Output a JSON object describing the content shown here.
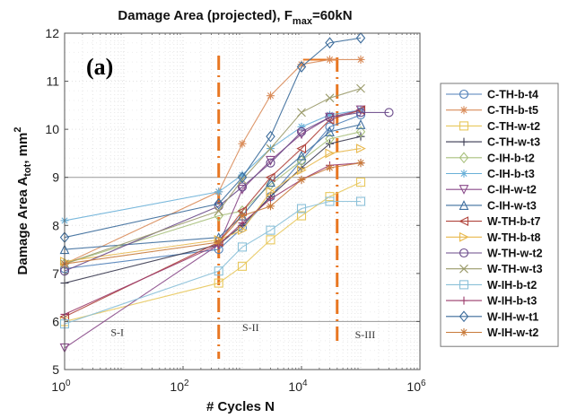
{
  "chart_data": {
    "type": "line",
    "title": "Damage Area (projected), F",
    "title_sub": "max",
    "title_suffix": "=60kN",
    "panel_label": "(a)",
    "xlabel": "# Cycles N",
    "ylabel": "Damage Area A",
    "ylabel_sub": "tot",
    "ylabel_suffix": ", mm",
    "ylabel_sup": "2",
    "xscale": "log",
    "xlim": [
      1,
      1000000
    ],
    "ylim": [
      5,
      12
    ],
    "xticks": [
      {
        "value": 1,
        "base": "10",
        "exp": "0"
      },
      {
        "value": 100,
        "base": "10",
        "exp": "2"
      },
      {
        "value": 10000,
        "base": "10",
        "exp": "4"
      },
      {
        "value": 1000000,
        "base": "10",
        "exp": "6"
      }
    ],
    "yticks": [
      5,
      6,
      7,
      8,
      9,
      10,
      11,
      12
    ],
    "grid": "minor dotted",
    "legend_position": "right-outside",
    "stage_boundaries": [
      {
        "x": 400,
        "color": "#e87722",
        "style": "dash-dot"
      },
      {
        "x": 40000,
        "color": "#e87722",
        "style": "dash-dot"
      }
    ],
    "stage_labels": [
      {
        "text": "S-I",
        "x": 6,
        "y": 5.7
      },
      {
        "text": "S-II",
        "x": 1000,
        "y": 5.8
      },
      {
        "text": "S-III",
        "x": 80000,
        "y": 5.65
      }
    ],
    "series": [
      {
        "name": "C-TH-b-t4",
        "color": "#4f7fb8",
        "marker": "circle",
        "x": [
          1,
          400,
          1000,
          3000,
          10000,
          30000,
          100000
        ],
        "y": [
          7.1,
          7.5,
          7.95,
          8.6,
          9.35,
          10.05,
          10.3
        ]
      },
      {
        "name": "C-TH-b-t5",
        "color": "#d98c5a",
        "marker": "star",
        "x": [
          1,
          400,
          1000,
          3000,
          10000,
          30000,
          100000
        ],
        "y": [
          7.2,
          8.7,
          9.7,
          10.7,
          11.35,
          11.45,
          11.45
        ]
      },
      {
        "name": "C-TH-w-t2",
        "color": "#e8c85c",
        "marker": "square",
        "x": [
          1,
          400,
          1000,
          3000,
          10000,
          30000,
          100000
        ],
        "y": [
          6.0,
          6.8,
          7.15,
          7.7,
          8.2,
          8.6,
          8.9
        ]
      },
      {
        "name": "C-TH-w-t3",
        "color": "#3a3a50",
        "marker": "plus",
        "x": [
          1,
          400,
          1000,
          3000,
          10000,
          30000,
          100000
        ],
        "y": [
          6.8,
          7.6,
          8.0,
          8.6,
          9.2,
          9.7,
          9.85
        ]
      },
      {
        "name": "C-IH-b-t2",
        "color": "#a8c07c",
        "marker": "diamond",
        "x": [
          1,
          400,
          1000,
          3000,
          10000,
          30000,
          100000
        ],
        "y": [
          7.2,
          8.2,
          8.3,
          8.85,
          9.35,
          9.8,
          9.95
        ]
      },
      {
        "name": "C-IH-b-t3",
        "color": "#6ab0d8",
        "marker": "asterisk",
        "x": [
          1,
          400,
          1000,
          3000,
          10000,
          30000,
          100000
        ],
        "y": [
          8.1,
          8.7,
          9.05,
          9.6,
          10.05,
          10.3,
          10.4
        ]
      },
      {
        "name": "C-IH-w-t2",
        "color": "#8a4a8a",
        "marker": "triangle-down",
        "x": [
          1,
          400,
          1000,
          3000,
          10000,
          30000,
          100000
        ],
        "y": [
          5.45,
          7.6,
          8.75,
          9.35,
          9.9,
          10.25,
          10.4
        ]
      },
      {
        "name": "C-IH-w-t3",
        "color": "#3f6f9f",
        "marker": "triangle-up",
        "x": [
          1,
          400,
          1000,
          3000,
          10000,
          30000,
          100000
        ],
        "y": [
          7.5,
          7.75,
          8.2,
          8.9,
          9.45,
          9.95,
          10.1
        ]
      },
      {
        "name": "W-TH-b-t7",
        "color": "#b0443c",
        "marker": "triangle-left",
        "x": [
          1,
          400,
          1000,
          3000,
          10000,
          30000,
          100000
        ],
        "y": [
          6.1,
          7.65,
          8.3,
          9.0,
          9.6,
          10.2,
          10.4
        ]
      },
      {
        "name": "W-TH-b-t8",
        "color": "#e8b84c",
        "marker": "triangle-right",
        "x": [
          1,
          400,
          1000,
          3000,
          10000,
          30000,
          100000
        ],
        "y": [
          7.25,
          7.7,
          7.9,
          8.7,
          9.15,
          9.5,
          9.6
        ]
      },
      {
        "name": "W-TH-w-t2",
        "color": "#6a4a8a",
        "marker": "circle",
        "x": [
          1,
          400,
          1000,
          3000,
          10000,
          30000,
          100000,
          300000
        ],
        "y": [
          7.05,
          8.4,
          8.8,
          9.3,
          9.95,
          10.25,
          10.35,
          10.35
        ]
      },
      {
        "name": "W-TH-w-t3",
        "color": "#9a9a6a",
        "marker": "x",
        "x": [
          1,
          400,
          1000,
          3000,
          10000,
          30000,
          100000
        ],
        "y": [
          7.2,
          8.3,
          8.95,
          9.6,
          10.35,
          10.65,
          10.85
        ]
      },
      {
        "name": "W-IH-b-t2",
        "color": "#8ac0d8",
        "marker": "square",
        "x": [
          1,
          400,
          1000,
          3000,
          10000,
          30000,
          100000
        ],
        "y": [
          5.95,
          7.05,
          7.55,
          7.9,
          8.35,
          8.5,
          8.5
        ]
      },
      {
        "name": "W-IH-b-t3",
        "color": "#9a3a6a",
        "marker": "plus",
        "x": [
          1,
          400,
          1000,
          3000,
          10000,
          30000,
          100000
        ],
        "y": [
          6.15,
          7.6,
          8.05,
          8.55,
          8.95,
          9.25,
          9.3
        ]
      },
      {
        "name": "W-IH-w-t1",
        "color": "#3a6a9a",
        "marker": "diamond",
        "x": [
          1,
          400,
          1000,
          3000,
          10000,
          30000,
          100000
        ],
        "y": [
          7.75,
          8.45,
          9.0,
          9.85,
          11.3,
          11.8,
          11.9
        ]
      },
      {
        "name": "W-IH-w-t2",
        "color": "#c87a3a",
        "marker": "asterisk",
        "x": [
          1,
          400,
          1000,
          3000,
          10000,
          30000,
          100000
        ],
        "y": [
          7.2,
          7.65,
          8.2,
          8.4,
          8.95,
          9.2,
          9.3
        ]
      }
    ]
  }
}
